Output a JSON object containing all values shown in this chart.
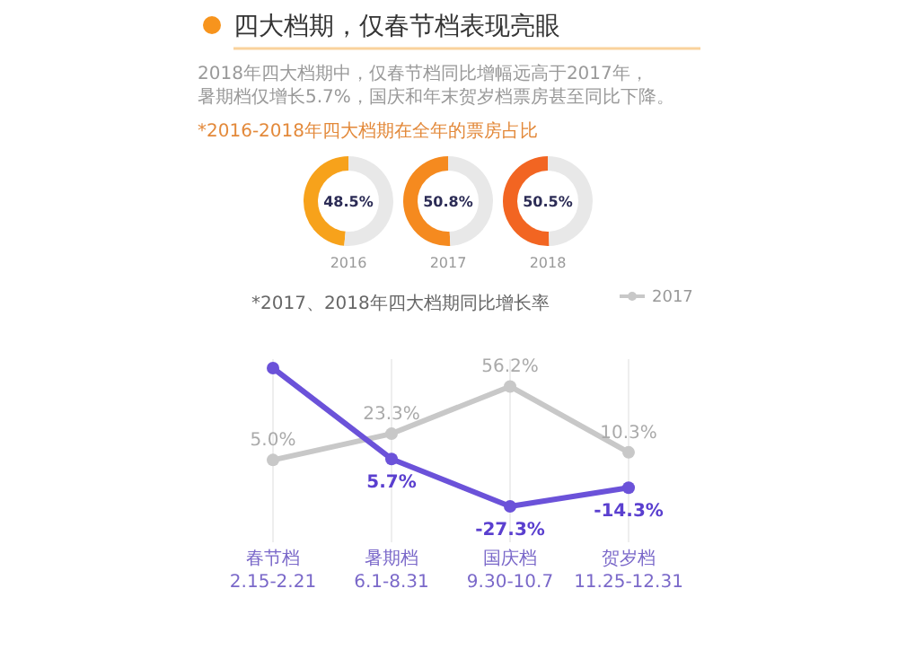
{
  "chart_data": [
    {
      "type": "other",
      "title": "四大档期，仅春节档表现亮眼",
      "subtitle": "2018年四大档期中，仅春节档同比增幅远高于2017年，暑期档仅增长5.7%，国庆和年末贺岁档票房甚至同比下降。",
      "annotations": [
        "*2016-2018年四大档期在全年的票房占比"
      ]
    },
    {
      "type": "donut",
      "xlabel": "2016",
      "categories": [
        null,
        null
      ],
      "values": [
        48.5,
        51.5
      ],
      "colors": [
        "#f7a21b",
        "#e8e8e8"
      ],
      "value_labels": [
        "48.5%",
        null
      ]
    },
    {
      "type": "donut",
      "xlabel": "2017",
      "categories": [
        null,
        null
      ],
      "values": [
        50.8,
        49.2
      ],
      "colors": [
        "#f58a1f",
        "#e8e8e8"
      ],
      "value_labels": [
        "50.8%",
        null
      ]
    },
    {
      "type": "donut",
      "xlabel": "2018",
      "categories": [
        null,
        null
      ],
      "values": [
        50.5,
        49.5
      ],
      "colors": [
        "#f26522",
        "#e8e8e8"
      ],
      "value_labels": [
        "50.5%",
        null
      ]
    },
    {
      "type": "line",
      "title": "*2017、2018年四大档期同比增长率",
      "categories": [
        "春节档\n2.15-2.21",
        "暑期档\n6.1-8.31",
        "国庆档\n9.30-10.7",
        "贺岁档\n11.25-12.31"
      ],
      "marker": "circle",
      "grid": "x",
      "legend": "top right",
      "series": [
        {
          "name": "2017",
          "color": "#c8c8c8",
          "values": [
            5.0,
            23.3,
            56.2,
            10.3
          ],
          "value_labels": [
            "5.0%",
            "23.3%",
            "56.2%",
            "10.3%"
          ]
        },
        {
          "color": "#6b52d9",
          "values": [
            69,
            5.7,
            -27.3,
            -14.3
          ],
          "value_labels": [
            null,
            "5.7%",
            "-27.3%",
            "-14.3%"
          ]
        }
      ]
    }
  ]
}
